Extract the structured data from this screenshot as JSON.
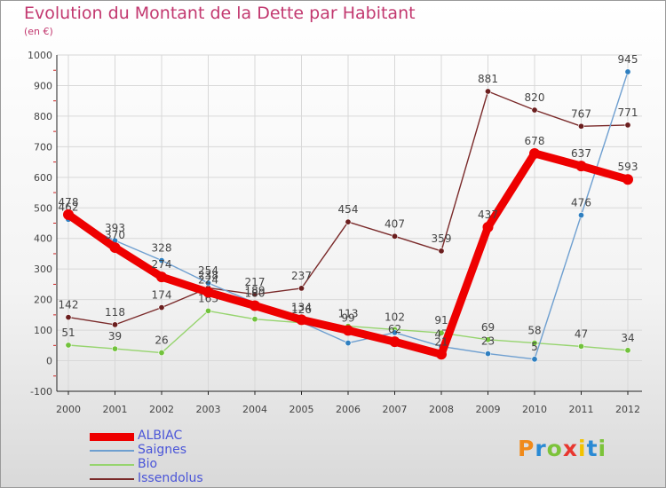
{
  "header": {
    "title": "Evolution du Montant de la Dette par Habitant",
    "subtitle": "(en €)"
  },
  "logo": {
    "text": "Proxiti",
    "colors": [
      "#f08a1a",
      "#2a8ad4",
      "#7cc33a",
      "#e8372f",
      "#f2c200",
      "#2a8ad4",
      "#7cc33a"
    ]
  },
  "colors": {
    "axis": "#222222",
    "grid": "#d8d8d8",
    "tick_mark": "#cc2222",
    "label": "#444444",
    "legend_text": "#4a55d8"
  },
  "chart_data": {
    "type": "line",
    "title": "Evolution du Montant de la Dette par Habitant",
    "subtitle": "(en €)",
    "x": [
      "2000",
      "2001",
      "2002",
      "2003",
      "2004",
      "2005",
      "2006",
      "2007",
      "2008",
      "2009",
      "2010",
      "2011",
      "2012"
    ],
    "ylim": [
      -100,
      1000
    ],
    "yticks": [
      "-100",
      "0",
      "100",
      "200",
      "300",
      "400",
      "500",
      "600",
      "700",
      "800",
      "900",
      "1000"
    ],
    "grid": true,
    "legend_position": "bottom-left",
    "series": [
      {
        "name": "Bio",
        "color": "#96d46e",
        "marker": "#72c23c",
        "width": 1.4,
        "markerSize": 3.2,
        "values": [
          51,
          39,
          26,
          163,
          136,
          124,
          113,
          102,
          91,
          69,
          58,
          47,
          34
        ],
        "labels": [
          "51",
          "39",
          "26",
          "163",
          "",
          "",
          "113",
          "102",
          "91",
          "69",
          "58",
          "47",
          "34"
        ]
      },
      {
        "name": "Issendolus",
        "color": "#7a2a2a",
        "marker": "#6b1e1e",
        "width": 1.4,
        "markerSize": 3.2,
        "values": [
          142,
          118,
          174,
          238,
          217,
          237,
          454,
          407,
          359,
          881,
          820,
          767,
          771
        ],
        "labels": [
          "142",
          "118",
          "174",
          "238",
          "217",
          "237",
          "454",
          "407",
          "359",
          "881",
          "820",
          "767",
          "771"
        ]
      },
      {
        "name": "Saignes",
        "color": "#6e9fd0",
        "marker": "#2f7fc0",
        "width": 1.4,
        "markerSize": 3.2,
        "values": [
          462,
          393,
          328,
          254,
          189,
          126,
          58,
          92,
          47,
          23,
          5,
          476,
          945
        ],
        "labels": [
          "462",
          "393",
          "328",
          "254",
          "189",
          "126",
          "",
          "",
          "47",
          "23",
          "5",
          "476",
          "945"
        ]
      },
      {
        "name": "ALBIAC",
        "color": "#ee0000",
        "marker": "#ee0000",
        "width": 9,
        "markerSize": 6,
        "values": [
          478,
          370,
          274,
          224,
          180,
          134,
          99,
          62,
          21,
          437,
          678,
          637,
          593
        ],
        "labels": [
          "478",
          "370",
          "274",
          "224",
          "180",
          "134",
          "99",
          "62",
          "21",
          "437",
          "678",
          "637",
          "593"
        ]
      }
    ]
  },
  "legend": {
    "items": [
      {
        "name": "ALBIAC",
        "color": "#ee0000",
        "thickness": 9
      },
      {
        "name": "Saignes",
        "color": "#6e9fd0",
        "thickness": 2
      },
      {
        "name": "Bio",
        "color": "#96d46e",
        "thickness": 2
      },
      {
        "name": "Issendolus",
        "color": "#7a2a2a",
        "thickness": 2
      }
    ]
  }
}
